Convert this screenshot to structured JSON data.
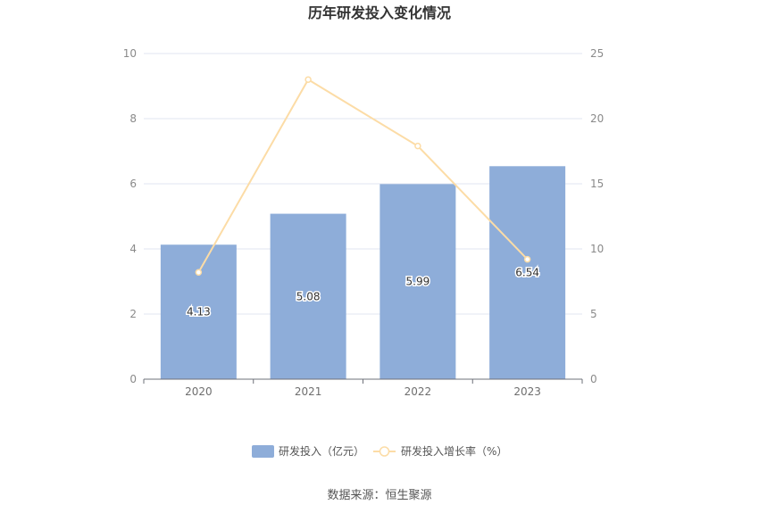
{
  "chart_data": {
    "type": "bar",
    "title": "历年研发投入变化情况",
    "categories": [
      "2020",
      "2021",
      "2022",
      "2023"
    ],
    "series": [
      {
        "name": "研发投入（亿元）",
        "type": "bar",
        "axis": "left",
        "color": "#8eadd9",
        "values": [
          4.13,
          5.08,
          5.99,
          6.54
        ],
        "labels": [
          "4.13",
          "5.08",
          "5.99",
          "6.54"
        ]
      },
      {
        "name": "研发投入增长率（%）",
        "type": "line",
        "axis": "right",
        "color": "#fcdca6",
        "values": [
          8.2,
          23.0,
          17.9,
          9.2
        ]
      }
    ],
    "y_left": {
      "min": 0,
      "max": 10,
      "ticks": [
        "0",
        "2",
        "4",
        "6",
        "8",
        "10"
      ]
    },
    "y_right": {
      "min": 0,
      "max": 25,
      "ticks": [
        "0",
        "5",
        "10",
        "15",
        "20",
        "25"
      ]
    },
    "grid": true,
    "legend_position": "bottom"
  },
  "source_text": "数据来源：恒生聚源"
}
